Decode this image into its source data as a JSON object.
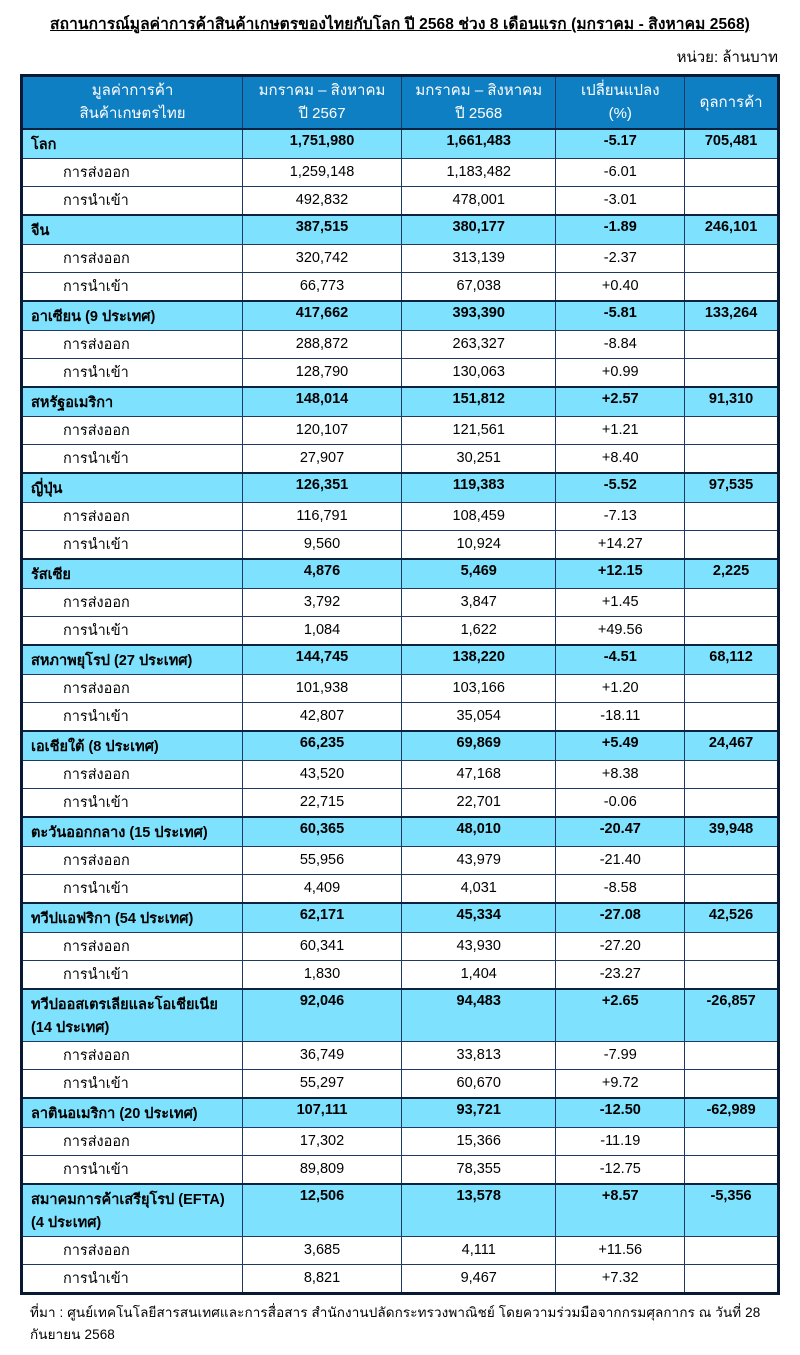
{
  "title": "สถานการณ์มูลค่าการค้าสินค้าเกษตรของไทยกับโลก ปี 2568 ช่วง 8 เดือนแรก (มกราคม - สิงหาคม 2568)",
  "unit_label": "หน่วย: ล้านบาท",
  "source_note": "ที่มา : ศูนย์เทคโนโลยีสารสนเทศและการสื่อสาร สำนักงานปลัดกระทรวงพาณิชย์ โดยความร่วมมือจากกรมศุลกากร ณ วันที่ 28 กันยายน 2568",
  "colors": {
    "header_bg": "#0f7fc3",
    "header_text": "#ffffff",
    "group_row_bg": "#7ee1fd",
    "empty_balance_bg": "#eff1f4",
    "inner_border": "#1e3a64",
    "outer_border": "#081a33"
  },
  "table": {
    "headers": [
      {
        "line1": "มูลค่าการค้า",
        "line2": "สินค้าเกษตรไทย"
      },
      {
        "line1": "มกราคม – สิงหาคม",
        "line2": "ปี 2567"
      },
      {
        "line1": "มกราคม – สิงหาคม",
        "line2": "ปี 2568"
      },
      {
        "line1": "เปลี่ยนแปลง",
        "line2": "(%)"
      },
      {
        "line1": "ดุลการค้า",
        "line2": ""
      }
    ],
    "row_labels": {
      "export": "การส่งออก",
      "import": "การนำเข้า"
    },
    "groups": [
      {
        "name": "โลก",
        "name_line2": "",
        "y2567": "1,751,980",
        "y2568": "1,661,483",
        "change": "-5.17",
        "balance": "705,481",
        "export": {
          "y2567": "1,259,148",
          "y2568": "1,183,482",
          "change": "-6.01"
        },
        "import": {
          "y2567": "492,832",
          "y2568": "478,001",
          "change": "-3.01"
        }
      },
      {
        "name": "จีน",
        "name_line2": "",
        "y2567": "387,515",
        "y2568": "380,177",
        "change": "-1.89",
        "balance": "246,101",
        "export": {
          "y2567": "320,742",
          "y2568": "313,139",
          "change": "-2.37"
        },
        "import": {
          "y2567": "66,773",
          "y2568": "67,038",
          "change": "+0.40"
        }
      },
      {
        "name": "อาเซียน (9 ประเทศ)",
        "name_line2": "",
        "y2567": "417,662",
        "y2568": "393,390",
        "change": "-5.81",
        "balance": "133,264",
        "export": {
          "y2567": "288,872",
          "y2568": "263,327",
          "change": "-8.84"
        },
        "import": {
          "y2567": "128,790",
          "y2568": "130,063",
          "change": "+0.99"
        }
      },
      {
        "name": "สหรัฐอเมริกา",
        "name_line2": "",
        "y2567": "148,014",
        "y2568": "151,812",
        "change": "+2.57",
        "balance": "91,310",
        "export": {
          "y2567": "120,107",
          "y2568": "121,561",
          "change": "+1.21"
        },
        "import": {
          "y2567": "27,907",
          "y2568": "30,251",
          "change": "+8.40"
        }
      },
      {
        "name": "ญี่ปุ่น",
        "name_line2": "",
        "y2567": "126,351",
        "y2568": "119,383",
        "change": "-5.52",
        "balance": "97,535",
        "export": {
          "y2567": "116,791",
          "y2568": "108,459",
          "change": "-7.13"
        },
        "import": {
          "y2567": "9,560",
          "y2568": "10,924",
          "change": "+14.27"
        }
      },
      {
        "name": "รัสเซีย",
        "name_line2": "",
        "y2567": "4,876",
        "y2568": "5,469",
        "change": "+12.15",
        "balance": "2,225",
        "export": {
          "y2567": "3,792",
          "y2568": "3,847",
          "change": "+1.45"
        },
        "import": {
          "y2567": "1,084",
          "y2568": "1,622",
          "change": "+49.56"
        }
      },
      {
        "name": "สหภาพยุโรป (27 ประเทศ)",
        "name_line2": "",
        "y2567": "144,745",
        "y2568": "138,220",
        "change": "-4.51",
        "balance": "68,112",
        "export": {
          "y2567": "101,938",
          "y2568": "103,166",
          "change": "+1.20"
        },
        "import": {
          "y2567": "42,807",
          "y2568": "35,054",
          "change": "-18.11"
        }
      },
      {
        "name": "เอเชียใต้ (8 ประเทศ)",
        "name_line2": "",
        "y2567": "66,235",
        "y2568": "69,869",
        "change": "+5.49",
        "balance": "24,467",
        "export": {
          "y2567": "43,520",
          "y2568": "47,168",
          "change": "+8.38"
        },
        "import": {
          "y2567": "22,715",
          "y2568": "22,701",
          "change": "-0.06"
        }
      },
      {
        "name": "ตะวันออกกลาง (15 ประเทศ)",
        "name_line2": "",
        "y2567": "60,365",
        "y2568": "48,010",
        "change": "-20.47",
        "balance": "39,948",
        "export": {
          "y2567": "55,956",
          "y2568": "43,979",
          "change": "-21.40"
        },
        "import": {
          "y2567": "4,409",
          "y2568": "4,031",
          "change": "-8.58"
        }
      },
      {
        "name": "ทวีปแอฟริกา (54 ประเทศ)",
        "name_line2": "",
        "y2567": "62,171",
        "y2568": "45,334",
        "change": "-27.08",
        "balance": "42,526",
        "export": {
          "y2567": "60,341",
          "y2568": "43,930",
          "change": "-27.20"
        },
        "import": {
          "y2567": "1,830",
          "y2568": "1,404",
          "change": "-23.27"
        }
      },
      {
        "name": "ทวีปออสเตรเลียและโอเชียเนีย",
        "name_line2": "(14 ประเทศ)",
        "y2567": "92,046",
        "y2568": "94,483",
        "change": "+2.65",
        "balance": "-26,857",
        "export": {
          "y2567": "36,749",
          "y2568": "33,813",
          "change": "-7.99"
        },
        "import": {
          "y2567": "55,297",
          "y2568": "60,670",
          "change": "+9.72"
        }
      },
      {
        "name": "ลาตินอเมริกา (20 ประเทศ)",
        "name_line2": "",
        "y2567": "107,111",
        "y2568": "93,721",
        "change": "-12.50",
        "balance": "-62,989",
        "export": {
          "y2567": "17,302",
          "y2568": "15,366",
          "change": "-11.19"
        },
        "import": {
          "y2567": "89,809",
          "y2568": "78,355",
          "change": "-12.75"
        }
      },
      {
        "name": "สมาคมการค้าเสรียุโรป (EFTA)",
        "name_line2": "(4 ประเทศ)",
        "y2567": "12,506",
        "y2568": "13,578",
        "change": "+8.57",
        "balance": "-5,356",
        "export": {
          "y2567": "3,685",
          "y2568": "4,111",
          "change": "+11.56"
        },
        "import": {
          "y2567": "8,821",
          "y2568": "9,467",
          "change": "+7.32"
        }
      }
    ]
  }
}
